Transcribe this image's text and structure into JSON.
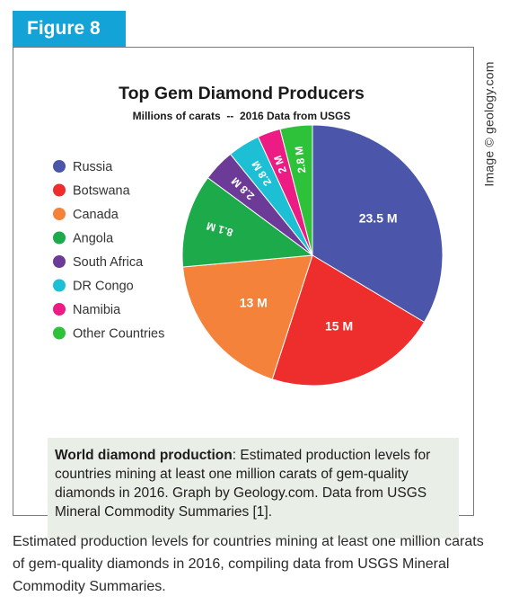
{
  "figure_label": "Figure 8",
  "image_credit": "Image © geology.com",
  "chart_data": {
    "type": "pie",
    "title": "Top Gem Diamond Producers",
    "subtitle": "Millions of carats  --  2016 Data from USGS",
    "unit": "M",
    "legend_position": "left",
    "slices": [
      {
        "name": "Russia",
        "value": 23.5,
        "label": "23.5 M",
        "color": "#4b56aa"
      },
      {
        "name": "Botswana",
        "value": 15,
        "label": "15 M",
        "color": "#ee2d2d"
      },
      {
        "name": "Canada",
        "value": 13,
        "label": "13 M",
        "color": "#f5823a"
      },
      {
        "name": "Angola",
        "value": 8.1,
        "label": "8.1 M",
        "color": "#1daa4a"
      },
      {
        "name": "South Africa",
        "value": 2.8,
        "label": "2.8 M",
        "color": "#6c3a97"
      },
      {
        "name": "DR Congo",
        "value": 2.8,
        "label": "2.8 M",
        "color": "#1cbfd4"
      },
      {
        "name": "Namibia",
        "value": 2,
        "label": "2 M",
        "color": "#ec1c84"
      },
      {
        "name": "Other Countries",
        "value": 2.8,
        "label": "2.8 M",
        "color": "#2ec13a"
      }
    ]
  },
  "note": {
    "bold": "World diamond production",
    "text": ": Estimated production levels for countries mining at least one million carats of gem-quality diamonds in 2016. Graph by Geology.com. Data from USGS Mineral Commodity Summaries [1]."
  },
  "caption": "Estimated production levels for countries mining at least one million carats of gem-quality diamonds in 2016, compiling data from USGS Mineral Commodity Summaries."
}
